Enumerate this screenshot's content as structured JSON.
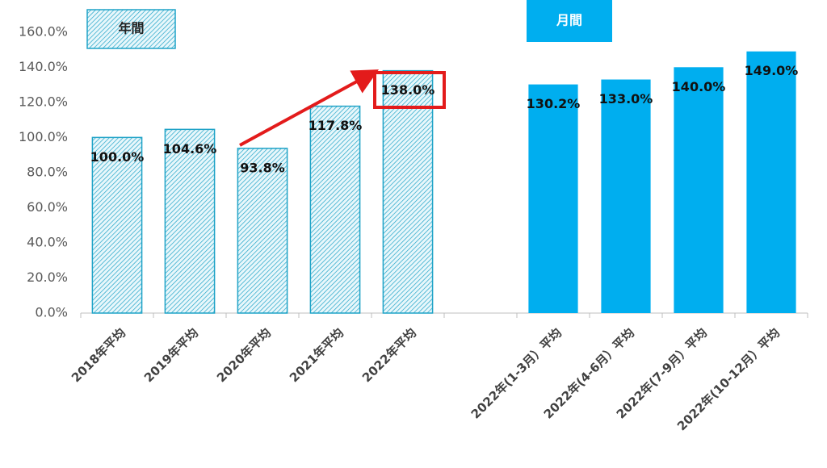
{
  "chart_data": {
    "type": "bar",
    "categories": [
      "2018年平均",
      "2019年平均",
      "2020年平均",
      "2021年平均",
      "2022年平均",
      null,
      "2022年(1-3月）平均",
      "2022年(4-6月）平均",
      "2022年(7-9月）平均",
      "2022年(10-12月）平均"
    ],
    "series": [
      {
        "name": "年間",
        "color": "#1fa3c7",
        "hatch": true,
        "values": [
          100.0,
          104.6,
          93.8,
          117.8,
          138.0,
          null,
          null,
          null,
          null,
          null
        ],
        "value_labels": [
          "100.0%",
          "104.6%",
          "93.8%",
          "117.8%",
          "138.0%",
          null,
          null,
          null,
          null,
          null
        ]
      },
      {
        "name": "月間",
        "color": "#00aeef",
        "hatch": false,
        "values": [
          null,
          null,
          null,
          null,
          null,
          null,
          130.2,
          133.0,
          140.0,
          149.0
        ],
        "value_labels": [
          null,
          null,
          null,
          null,
          null,
          null,
          "130.2%",
          "133.0%",
          "140.0%",
          "149.0%"
        ]
      }
    ],
    "ylim": [
      0,
      170
    ],
    "yticks": [
      {
        "value": 0,
        "label": "0.0%"
      },
      {
        "value": 20,
        "label": "20.0%"
      },
      {
        "value": 40,
        "label": "40.0%"
      },
      {
        "value": 60,
        "label": "60.0%"
      },
      {
        "value": 80,
        "label": "80.0%"
      },
      {
        "value": 100,
        "label": "100.0%"
      },
      {
        "value": 120,
        "label": "120.0%"
      },
      {
        "value": 140,
        "label": "140.0%"
      },
      {
        "value": 160,
        "label": "160.0%"
      }
    ],
    "grid": false
  }
}
